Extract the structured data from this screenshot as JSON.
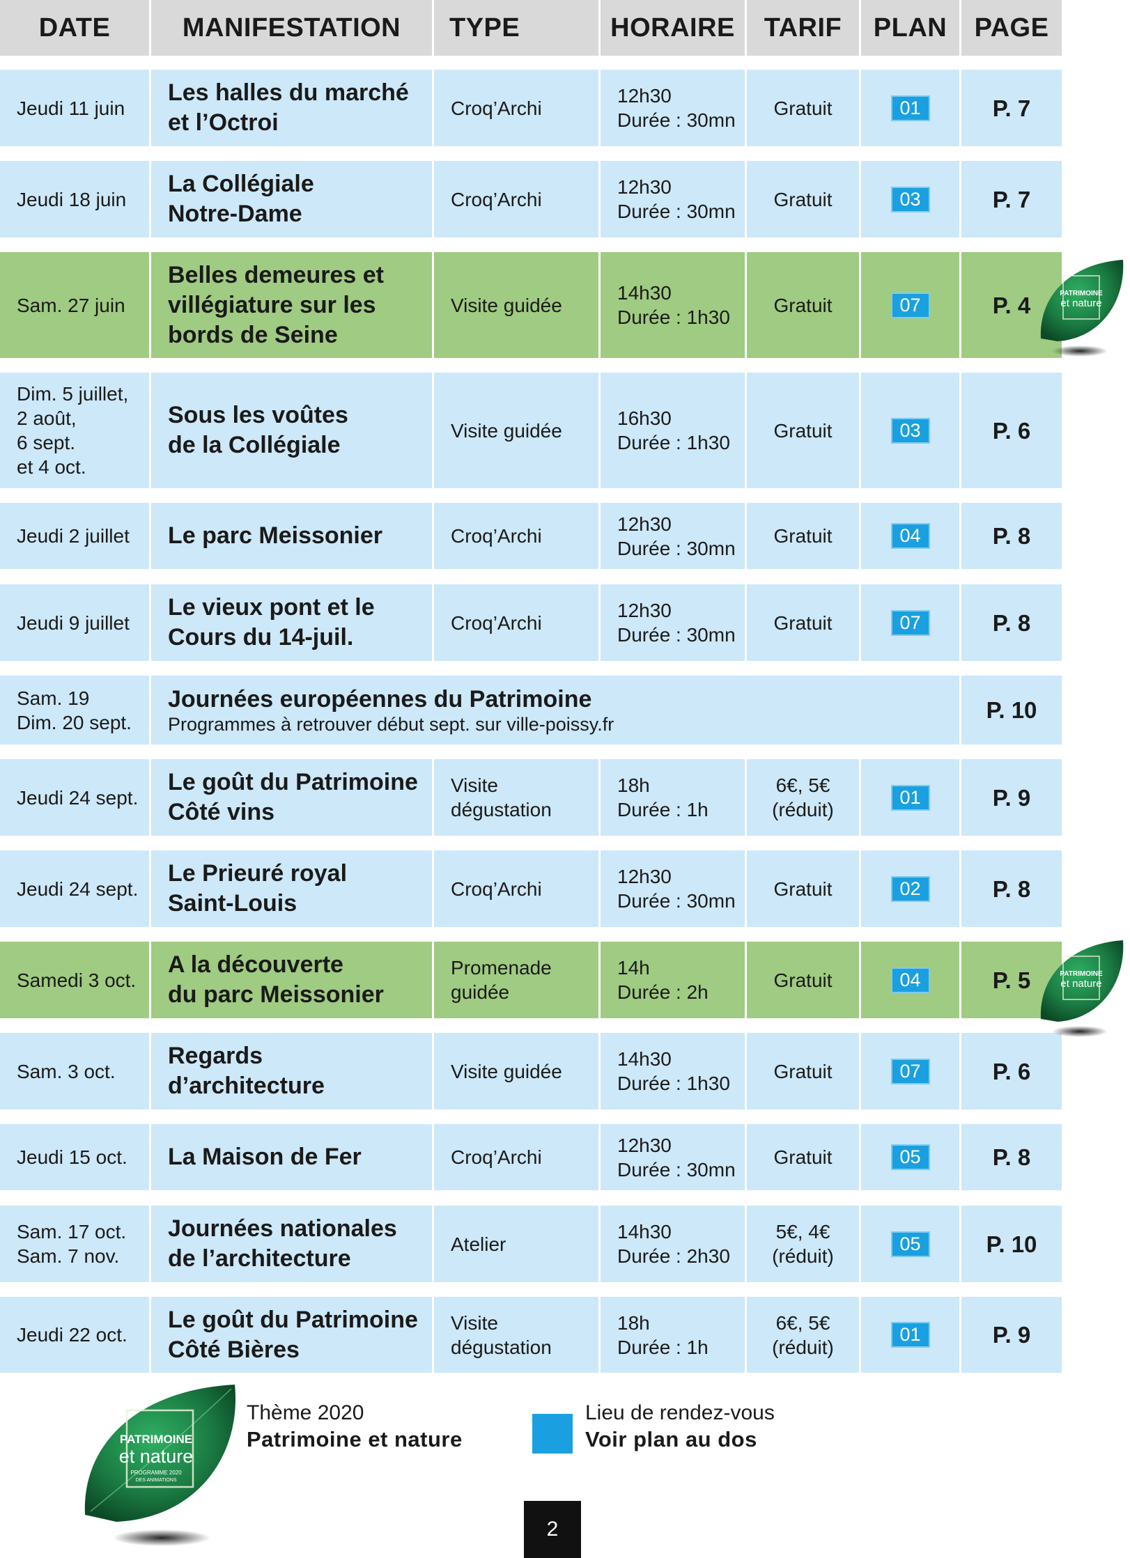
{
  "headers": {
    "date": "DATE",
    "manifestation": "MANIFESTATION",
    "type": "TYPE",
    "horaire": "HORAIRE",
    "tarif": "TARIF",
    "plan": "PLAN",
    "page": "PAGE"
  },
  "rows": [
    {
      "date": "Jeudi 11 juin",
      "manifestation": "Les halles du marché\net l’Octroi",
      "type": "Croq’Archi",
      "horaire": "12h30\nDurée : 30mn",
      "tarif": "Gratuit",
      "plan": "01",
      "page": "P. 7",
      "theme": false
    },
    {
      "date": "Jeudi 18 juin",
      "manifestation": "La Collégiale\nNotre-Dame",
      "type": "Croq’Archi",
      "horaire": "12h30\nDurée : 30mn",
      "tarif": "Gratuit",
      "plan": "03",
      "page": "P. 7",
      "theme": false
    },
    {
      "date": "Sam. 27 juin",
      "manifestation": "Belles demeures et\nvillégiature sur les\nbords de Seine",
      "type": "Visite guidée",
      "horaire": "14h30\nDurée : 1h30",
      "tarif": "Gratuit",
      "plan": "07",
      "page": "P. 4",
      "theme": true
    },
    {
      "date": "Dim. 5 juillet,\n2 août,\n6 sept.\net 4 oct.",
      "manifestation": "Sous les voûtes\nde la Collégiale",
      "type": "Visite guidée",
      "horaire": "16h30\nDurée : 1h30",
      "tarif": "Gratuit",
      "plan": "03",
      "page": "P. 6",
      "theme": false
    },
    {
      "date": "Jeudi 2 juillet",
      "manifestation": "Le parc Meissonier",
      "type": "Croq’Archi",
      "horaire": "12h30\nDurée : 30mn",
      "tarif": "Gratuit",
      "plan": "04",
      "page": "P. 8",
      "theme": false
    },
    {
      "date": "Jeudi 9 juillet",
      "manifestation": "Le vieux pont et le\nCours du 14-juil.",
      "type": "Croq’Archi",
      "horaire": "12h30\nDurée : 30mn",
      "tarif": "Gratuit",
      "plan": "07",
      "page": "P. 8",
      "theme": false
    },
    {
      "date": "Sam. 19\nDim. 20 sept.",
      "manifestation": "Journées européennes du Patrimoine",
      "subtitle": "Programmes à retrouver début sept. sur ville-poissy.fr",
      "page": "P. 10",
      "theme": false,
      "wide": true
    },
    {
      "date": "Jeudi 24 sept.",
      "manifestation": "Le goût du Patrimoine\nCôté vins",
      "type": "Visite\ndégustation",
      "horaire": "18h\nDurée : 1h",
      "tarif": "6€, 5€\n(réduit)",
      "plan": "01",
      "page": "P. 9",
      "theme": false
    },
    {
      "date": "Jeudi 24 sept.",
      "manifestation": "Le Prieuré royal\nSaint-Louis",
      "type": "Croq’Archi",
      "horaire": "12h30\nDurée : 30mn",
      "tarif": "Gratuit",
      "plan": "02",
      "page": "P. 8",
      "theme": false
    },
    {
      "date": "Samedi 3 oct.",
      "manifestation": "A la découverte\ndu parc Meissonier",
      "type": "Promenade\nguidée",
      "horaire": "14h\nDurée : 2h",
      "tarif": "Gratuit",
      "plan": "04",
      "page": "P. 5",
      "theme": true
    },
    {
      "date": "Sam. 3 oct.",
      "manifestation": "Regards\nd’architecture",
      "type": "Visite guidée",
      "horaire": "14h30\nDurée : 1h30",
      "tarif": "Gratuit",
      "plan": "07",
      "page": "P. 6",
      "theme": false
    },
    {
      "date": "Jeudi 15 oct.",
      "manifestation": "La Maison de Fer",
      "type": "Croq’Archi",
      "horaire": "12h30\nDurée : 30mn",
      "tarif": "Gratuit",
      "plan": "05",
      "page": "P. 8",
      "theme": false
    },
    {
      "date": "Sam. 17 oct.\nSam. 7 nov.",
      "manifestation": "Journées nationales\nde l’architecture",
      "type": "Atelier",
      "horaire": "14h30\nDurée : 2h30",
      "tarif": "5€, 4€\n(réduit)",
      "plan": "05",
      "page": "P. 10",
      "theme": false
    },
    {
      "date": "Jeudi 22 oct.",
      "manifestation": "Le goût du Patrimoine\nCôté Bières",
      "type": "Visite\ndégustation",
      "horaire": "18h\nDurée : 1h",
      "tarif": "6€, 5€\n(réduit)",
      "plan": "01",
      "page": "P. 9",
      "theme": false
    }
  ],
  "logo": {
    "line1": "PATRIMOINE",
    "line2": "et nature",
    "line3": "PROGRAMME 2020",
    "line4": "DES ANIMATIONS"
  },
  "legend": {
    "theme_label": "Thème 2020",
    "theme_value": "Patrimoine et nature",
    "meeting_label": "Lieu de rendez-vous",
    "meeting_value": "Voir plan au dos"
  },
  "page_number": "2",
  "colors": {
    "header": "#d9d9d9",
    "row_blue": "#cde8f8",
    "row_green": "#a0cb82",
    "plan_badge": "#1aa0e0",
    "leaf_green": "#1f8a4c"
  }
}
